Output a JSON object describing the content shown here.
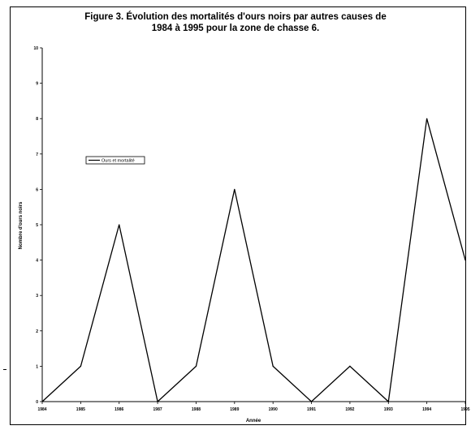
{
  "chart_data": {
    "type": "line",
    "title_line1": "Figure 3. Évolution des mortalités d'ours noirs par autres causes de",
    "title_line2": "1984 à 1995 pour la zone de chasse 6.",
    "xlabel": "Année",
    "ylabel": "Nombre d'ours noirs",
    "categories": [
      "1984",
      "1985",
      "1986",
      "1987",
      "1988",
      "1989",
      "1990",
      "1991",
      "1992",
      "1993",
      "1994",
      "1995"
    ],
    "series": [
      {
        "name": "Ours et mortalité",
        "values": [
          0,
          1,
          5,
          0,
          1,
          6,
          1,
          0,
          1,
          0,
          8,
          4
        ],
        "color": "#000000"
      }
    ],
    "ylim": [
      0,
      10
    ],
    "yticks": [
      0,
      1,
      2,
      3,
      4,
      5,
      6,
      7,
      8,
      9,
      10
    ],
    "grid": false,
    "legend": "left, inside plot"
  }
}
